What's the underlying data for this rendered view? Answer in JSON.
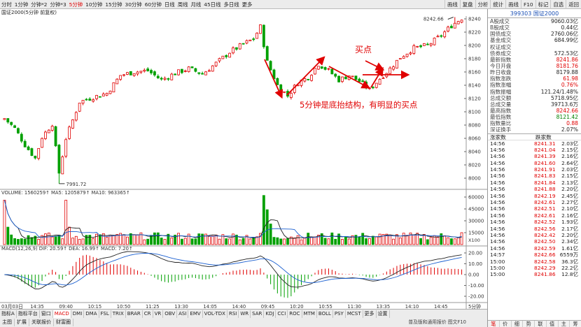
{
  "toolbar": {
    "left": [
      "分时",
      "1分钟",
      "分钟*2",
      "分钟*3",
      "5分钟",
      "10分钟",
      "15分钟",
      "30分钟",
      "60分钟",
      "日线",
      "周线",
      "月线",
      "45日线",
      "多日线",
      "更多"
    ],
    "active_index": 4,
    "right": [
      "画线",
      "复盘",
      "分析",
      "统计",
      "画线",
      "F10",
      "标记",
      "自选",
      "返回"
    ]
  },
  "info_line": "国证2000(5分钟 前复权)",
  "main_chart": {
    "y_ticks": [
      "8240",
      "8220",
      "8200",
      "8180",
      "8160",
      "8140",
      "8120",
      "8100",
      "8080",
      "8060",
      "8040",
      "8020",
      "8000"
    ],
    "high_label": "8242.66",
    "low_label": "7991.72",
    "annotation_main": "5分钟是底抬结构，有明显的买点",
    "annotation_buy": "买点"
  },
  "volume_panel": {
    "label": "VOLUME: 1560259↑  MA5: 1205879↑  MA10: 963365↑",
    "y_ticks": [
      "60000",
      "45000",
      "30000",
      "15000"
    ],
    "unit": "X100"
  },
  "macd_panel": {
    "label": "MACD(12,26,9)  DIF: 20.59↑  DEA: 16.99↑  MACD: 7.20↑",
    "y_ticks": [
      "20.00",
      "10.00",
      "0.00",
      "-10.00",
      "-20.00"
    ]
  },
  "x_axis": [
    "03月03日",
    "14:35",
    "09:40",
    "10:15",
    "10:50",
    "11:25",
    "13:30",
    "14:05",
    "14:40",
    "09:45",
    "10:20",
    "10:55",
    "11:30",
    "13:35",
    "14:10",
    "14:45"
  ],
  "x_axis_right": "5分钟",
  "bottom_tabs": [
    "指标A",
    "指标平台",
    "窗口",
    "MACD",
    "DMI",
    "DMA",
    "FSL",
    "TRIX",
    "BRAR",
    "CR",
    "VR",
    "OBV",
    "ASI",
    "EMV",
    "VOL-TDX",
    "RSI",
    "WR",
    "SAR",
    "KDJ",
    "CCI",
    "ROC",
    "MTM",
    "BOLL",
    "PSY",
    "MCST",
    "更多",
    "设置"
  ],
  "bottom_tabs_active": 3,
  "bottom_tabs2": [
    "主图",
    "扩展",
    "关联报价",
    "财富圈"
  ],
  "status_right": "普及版和通用报价  图文F10",
  "side": {
    "code": "399303",
    "name": "国证2000",
    "stats": [
      {
        "label": "A股成交",
        "value": "9060.03亿",
        "color": "#222"
      },
      {
        "label": "B股成交",
        "value": "0.44亿",
        "color": "#222"
      },
      {
        "label": "国债成交",
        "value": "2760.06亿",
        "color": "#222"
      },
      {
        "label": "基金成交",
        "value": "684.99亿",
        "color": "#222"
      },
      {
        "label": "权证成交",
        "value": "",
        "color": "#222"
      },
      {
        "label": "债券成交",
        "value": "572.53亿",
        "color": "#222"
      },
      {
        "label": "最新指数",
        "value": "8241.86",
        "color": "#e00000"
      },
      {
        "label": "今日开盘",
        "value": "8181.76",
        "color": "#e00000"
      },
      {
        "label": "昨日收盘",
        "value": "8179.88",
        "color": "#222"
      },
      {
        "label": "指数涨跌",
        "value": "61.98",
        "color": "#e00000"
      },
      {
        "label": "指数涨幅",
        "value": "0.76%",
        "color": "#e00000"
      },
      {
        "label": "指数振幅",
        "value": "121.24/1.48%",
        "color": "#222"
      },
      {
        "label": "总成交额",
        "value": "5718.95亿",
        "color": "#222"
      },
      {
        "label": "总成交量",
        "value": "39713.6万",
        "color": "#222"
      },
      {
        "label": "最高指数",
        "value": "8242.66",
        "color": "#e00000"
      },
      {
        "label": "最低指数",
        "value": "8121.42",
        "color": "#008000"
      },
      {
        "label": "指数量比",
        "value": "0.88",
        "color": "#e00000"
      },
      {
        "label": "深证换手",
        "value": "2.07%",
        "color": "#222"
      }
    ],
    "ticks_header": {
      "up": "涨家数",
      "down": "跌家数"
    },
    "ticks": [
      {
        "t": "14:56",
        "p": "8241.31",
        "v": "2.03亿"
      },
      {
        "t": "14:56",
        "p": "8241.04",
        "v": "2.15亿"
      },
      {
        "t": "14:56",
        "p": "8241.39",
        "v": "2.16亿"
      },
      {
        "t": "14:56",
        "p": "8241.60",
        "v": "2.64亿"
      },
      {
        "t": "14:56",
        "p": "8241.91",
        "v": "2.03亿"
      },
      {
        "t": "14:56",
        "p": "8241.83",
        "v": "2.15亿"
      },
      {
        "t": "14:56",
        "p": "8241.84",
        "v": "2.13亿"
      },
      {
        "t": "14:56",
        "p": "8241.88",
        "v": "2.20亿"
      },
      {
        "t": "14:56",
        "p": "8242.19",
        "v": "2.45亿"
      },
      {
        "t": "14:56",
        "p": "8242.61",
        "v": "2.27亿"
      },
      {
        "t": "14:56",
        "p": "8242.51",
        "v": "2.10亿"
      },
      {
        "t": "14:56",
        "p": "8242.61",
        "v": "2.16亿"
      },
      {
        "t": "14:56",
        "p": "8242.52",
        "v": "1.93亿"
      },
      {
        "t": "14:56",
        "p": "8242.56",
        "v": "2.17亿"
      },
      {
        "t": "14:56",
        "p": "8242.42",
        "v": "2.20亿"
      },
      {
        "t": "14:56",
        "p": "8242.50",
        "v": "2.34亿"
      },
      {
        "t": "14:56",
        "p": "8242.59",
        "v": "1.61亿"
      },
      {
        "t": "14:57",
        "p": "8242.66",
        "v": "6559万"
      },
      {
        "t": "15:00",
        "p": "8242.58",
        "v": "36.3亿"
      },
      {
        "t": "15:00",
        "p": "8242.29",
        "v": "22.2亿"
      },
      {
        "t": "15:00",
        "p": "8241.86",
        "v": "12.8亿"
      }
    ],
    "footer_tabs": [
      "笔",
      "价",
      "细",
      "势",
      "联",
      "值",
      "主",
      "筹"
    ],
    "footer_active": 0
  },
  "colors": {
    "up": "#e00000",
    "down": "#00a000",
    "annotation": "#e00000",
    "dif": "#222222",
    "dea": "#1a5fd0"
  }
}
